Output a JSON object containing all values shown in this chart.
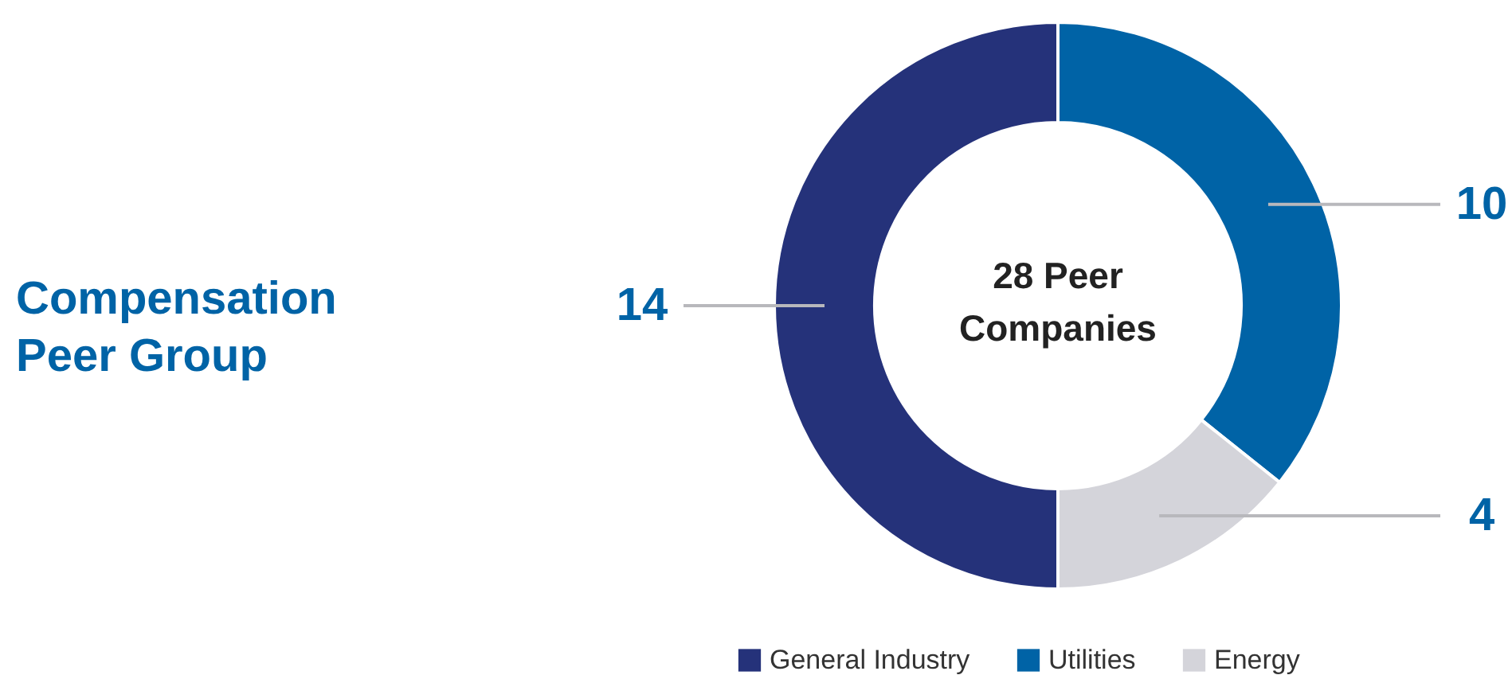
{
  "chart_data": {
    "type": "donut",
    "title": "Compensation Peer Group",
    "annotations": [
      "28 Peer Companies"
    ],
    "categories": [
      "General Industry",
      "Utilities",
      "Energy"
    ],
    "values": [
      14,
      10,
      4
    ],
    "colors": [
      "#25327a",
      "#0063a6",
      "#d4d4da"
    ],
    "data_labels": true,
    "legend": "bottom"
  }
}
